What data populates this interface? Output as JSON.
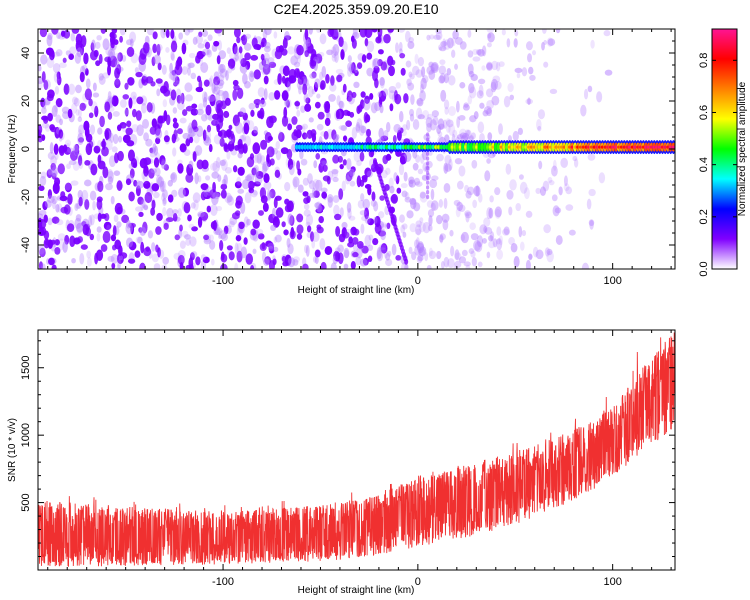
{
  "title": "C2E4.2025.359.09.20.E10",
  "colors": {
    "snr_line": "#f03030",
    "axis": "#000000",
    "background": "#ffffff"
  },
  "chart_data": [
    {
      "type": "heatmap",
      "name": "spectrogram",
      "xlabel": "Height of straight line (km)",
      "ylabel": "Frequency (Hz)",
      "xlim": [
        -195,
        132
      ],
      "ylim": [
        -50,
        50
      ],
      "x_ticks": [
        -100,
        0,
        100
      ],
      "y_ticks": [
        -40,
        -20,
        0,
        20,
        40
      ],
      "signal_track": {
        "frequency_hz": 0.8,
        "start_km": -62,
        "end_km": 132,
        "peak_amplitude": 0.9
      },
      "colorbar": {
        "label": "Normalized spectral amplitude",
        "range": [
          0.0,
          0.9
        ],
        "ticks": [
          0.0,
          0.2,
          0.4,
          0.6,
          0.8
        ],
        "colormap": [
          "#ffffff",
          "#8000ff",
          "#0000ff",
          "#00ffff",
          "#00ff00",
          "#ffff00",
          "#ff8000",
          "#ff0000",
          "#ff1493"
        ]
      }
    },
    {
      "type": "line",
      "name": "snr",
      "xlabel": "Height of straight line (km)",
      "ylabel": "SNR (10 * v/v)",
      "xlim": [
        -195,
        132
      ],
      "ylim": [
        0,
        1780
      ],
      "x_ticks": [
        -100,
        0,
        100
      ],
      "y_ticks": [
        500,
        1000,
        1500
      ],
      "envelope": {
        "x": [
          -195,
          -150,
          -100,
          -50,
          -25,
          0,
          25,
          50,
          75,
          100,
          115,
          132
        ],
        "low": [
          20,
          30,
          40,
          60,
          100,
          170,
          240,
          330,
          470,
          680,
          880,
          1050
        ],
        "high": [
          520,
          470,
          430,
          480,
          550,
          680,
          780,
          880,
          1000,
          1200,
          1500,
          1780
        ]
      },
      "series": [
        {
          "name": "SNR",
          "color": "#f03030"
        }
      ]
    }
  ]
}
